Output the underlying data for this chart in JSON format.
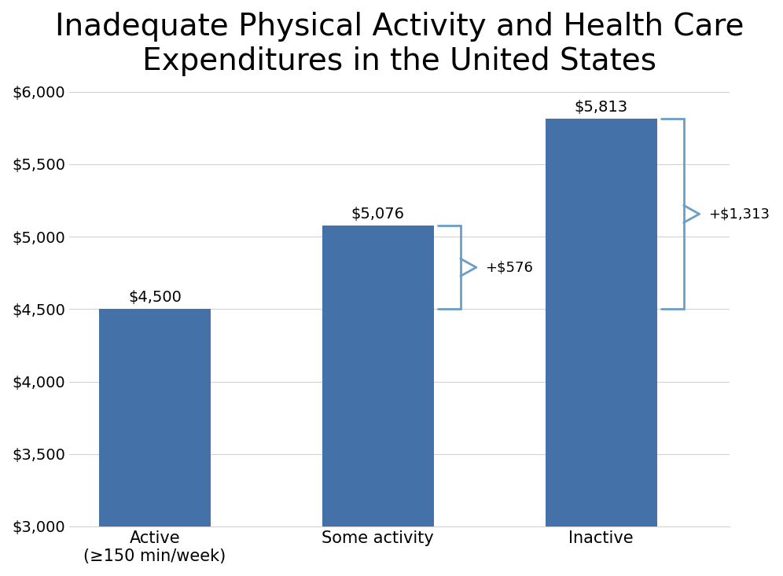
{
  "title": "Inadequate Physical Activity and Health Care\nExpenditures in the United States",
  "categories": [
    "Active\n(≥150 min/week)",
    "Some activity",
    "Inactive"
  ],
  "values": [
    4500,
    5076,
    5813
  ],
  "bar_color": "#4472A8",
  "ylim": [
    3000,
    6000
  ],
  "yticks": [
    3000,
    3500,
    4000,
    4500,
    5000,
    5500,
    6000
  ],
  "ytick_labels": [
    "$3,000",
    "$3,500",
    "$4,000",
    "$4,500",
    "$5,000",
    "$5,500",
    "$6,000"
  ],
  "bar_labels": [
    "$4,500",
    "$5,076",
    "$5,813"
  ],
  "diff_label_1": "+$576",
  "diff_label_2": "+$1,313",
  "background_color": "#ffffff",
  "title_fontsize": 28,
  "tick_fontsize": 14,
  "bar_label_fontsize": 14,
  "xlabel_fontsize": 15,
  "bracket_color": "#6B9EC7"
}
